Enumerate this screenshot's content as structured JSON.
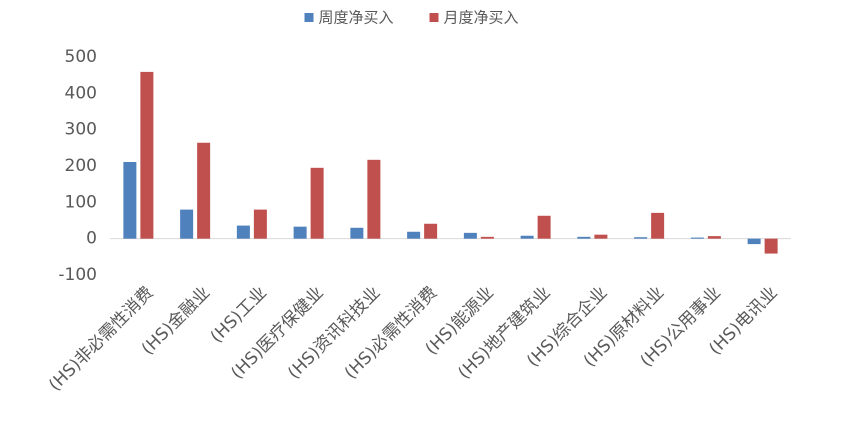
{
  "chart_data": {
    "type": "bar",
    "categories": [
      "(HS)非必需性消费",
      "(HS)金融业",
      "(HS)工业",
      "(HS)医疗保健业",
      "(HS)资讯科技业",
      "(HS)必需性消费",
      "(HS)能源业",
      "(HS)地产建筑业",
      "(HS)综合企业",
      "(HS)原材料业",
      "(HS)公用事业",
      "(HS)电讯业"
    ],
    "series": [
      {
        "name": "周度净买入",
        "color": "#4f81bd",
        "values": [
          211,
          80,
          36,
          33,
          30,
          19,
          16,
          8,
          5,
          4,
          3,
          -15
        ]
      },
      {
        "name": "月度净买入",
        "color": "#c0504d",
        "values": [
          459,
          264,
          80,
          195,
          217,
          41,
          5,
          63,
          11,
          71,
          7,
          -41
        ]
      }
    ],
    "ylim": [
      -100,
      500
    ],
    "yticks": [
      -100,
      0,
      100,
      200,
      300,
      400,
      500
    ],
    "legend": "top",
    "grid": false
  }
}
